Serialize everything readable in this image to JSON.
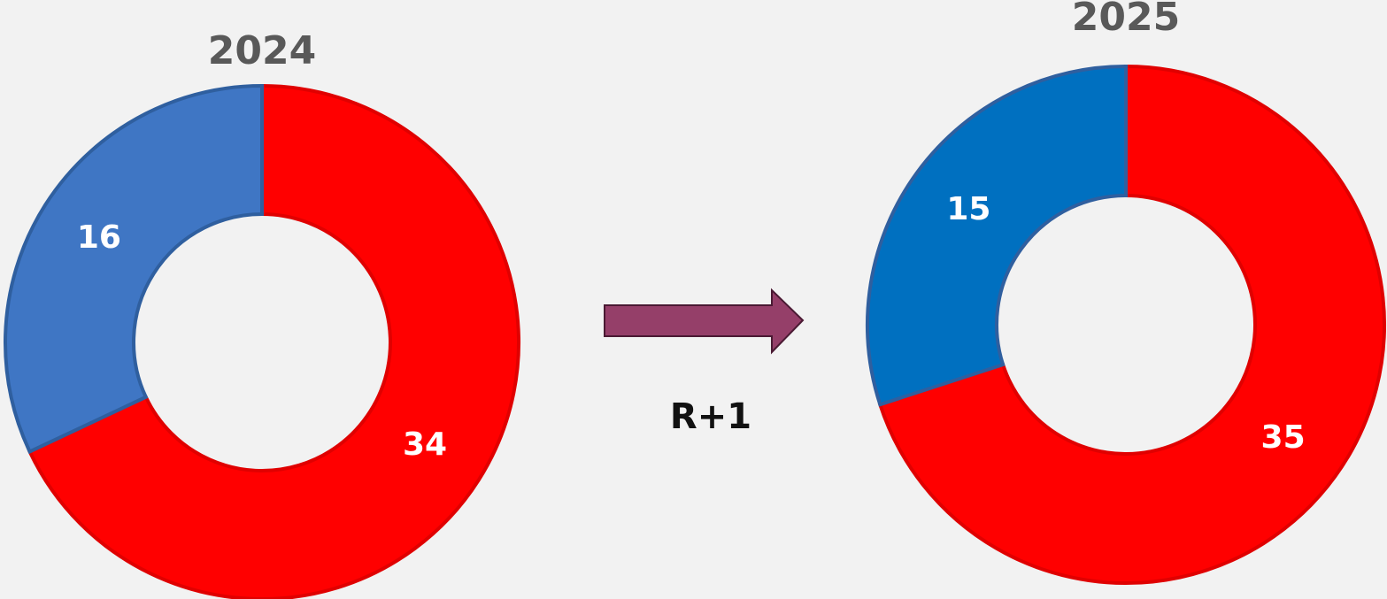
{
  "chart_data": [
    {
      "type": "donut",
      "title": "2024",
      "values": [
        34,
        16
      ],
      "colors": [
        "#ff0000",
        "#3f76c4"
      ]
    },
    {
      "type": "donut",
      "title": "2025",
      "values": [
        35,
        15
      ],
      "colors": [
        "#ff0000",
        "#0070c0"
      ]
    }
  ],
  "arrow_label": "R+1"
}
